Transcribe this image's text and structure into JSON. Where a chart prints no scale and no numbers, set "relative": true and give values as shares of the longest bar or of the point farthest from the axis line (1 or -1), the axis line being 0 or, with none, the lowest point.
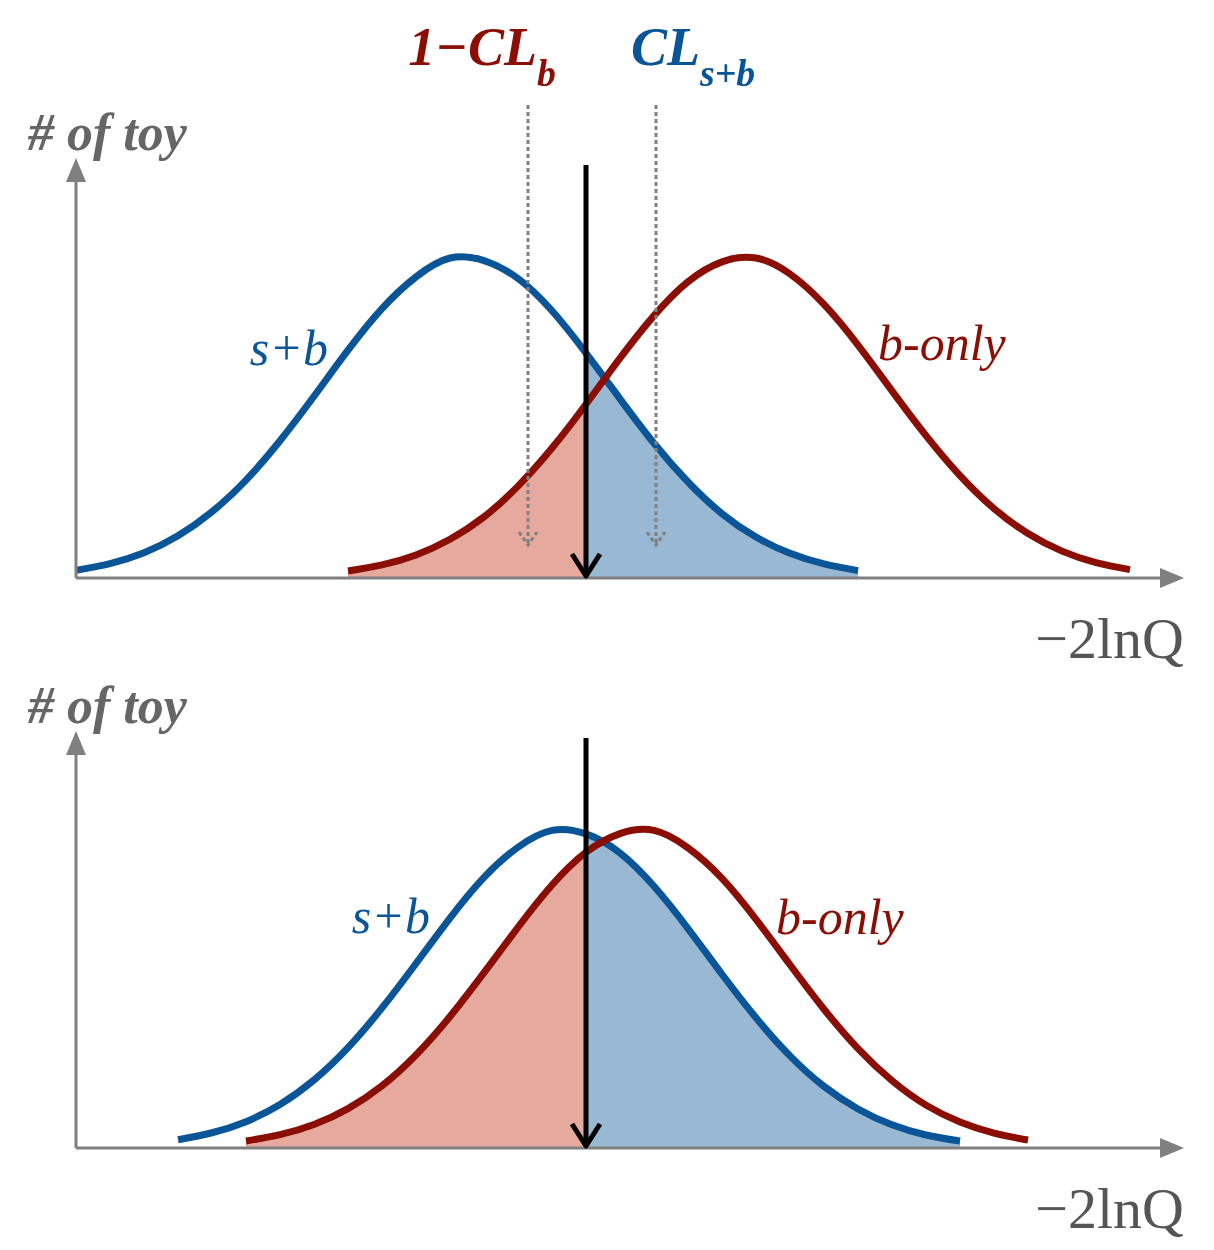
{
  "chart_data": [
    {
      "type": "line",
      "relative": true,
      "xlabel": "−2lnQ",
      "ylabel": "# of toy",
      "annotations": [
        "1−CL$_{b}$",
        "CL$_{s+b}$"
      ],
      "categories": [
        null,
        null,
        null,
        null,
        null,
        null,
        null,
        null,
        null,
        null,
        null,
        null,
        null,
        null,
        null,
        null,
        null,
        null,
        null,
        null,
        null,
        null,
        null,
        null,
        null,
        null,
        null,
        null,
        null,
        null,
        null,
        null,
        null
      ],
      "series": [
        {
          "type": "area",
          "color": "#e6a99d",
          "values": [
            null,
            null,
            null,
            null,
            null,
            null,
            null,
            null,
            0.022,
            0.041,
            0.072,
            0.121,
            0.191,
            0.287,
            0.406,
            0.543,
            null,
            null,
            null,
            null,
            null,
            null,
            null,
            null,
            null,
            null,
            null,
            null,
            null,
            null,
            null,
            null,
            null
          ]
        },
        {
          "type": "area",
          "color": "#98b8d3",
          "values": [
            null,
            null,
            null,
            null,
            null,
            null,
            null,
            null,
            null,
            null,
            null,
            null,
            null,
            null,
            null,
            0.703,
            0.56,
            0.421,
            0.3,
            0.201,
            0.128,
            0.077,
            0.044,
            0.023,
            null,
            null,
            null,
            null,
            null,
            null,
            null,
            null,
            null
          ]
        },
        {
          "type": "line",
          "name": "s+b",
          "color": "#0a5597",
          "values": [
            0.024,
            0.045,
            0.079,
            0.132,
            0.207,
            0.306,
            0.429,
            0.568,
            0.712,
            0.842,
            0.941,
            1,
            0.992,
            0.936,
            0.835,
            0.703,
            0.56,
            0.421,
            0.3,
            0.201,
            0.128,
            0.077,
            0.044,
            0.023,
            null,
            null,
            null,
            null,
            null,
            null,
            null,
            null,
            null
          ]
        },
        {
          "type": "line",
          "name": "b-only",
          "color": "#8b0e04",
          "values": [
            null,
            null,
            null,
            null,
            null,
            null,
            null,
            null,
            0.022,
            0.041,
            0.072,
            0.121,
            0.191,
            0.287,
            0.406,
            0.543,
            0.687,
            0.82,
            0.926,
            0.988,
            1,
            0.95,
            0.855,
            0.728,
            0.585,
            0.445,
            0.32,
            0.217,
            0.139,
            0.084,
            0.048,
            0.026,
            null
          ]
        }
      ]
    },
    {
      "type": "line",
      "relative": true,
      "xlabel": "−2lnQ",
      "ylabel": "# of toy",
      "categories": [
        null,
        null,
        null,
        null,
        null,
        null,
        null,
        null,
        null,
        null,
        null,
        null,
        null,
        null,
        null,
        null,
        null,
        null,
        null,
        null,
        null,
        null,
        null,
        null,
        null,
        null,
        null,
        null,
        null,
        null,
        null,
        null,
        null
      ],
      "series": [
        {
          "type": "area",
          "color": "#e6a99d",
          "values": [
            null,
            null,
            null,
            null,
            null,
            0.022,
            0.042,
            0.074,
            0.124,
            0.196,
            0.293,
            0.414,
            0.552,
            0.695,
            0.828,
            0.931,
            null,
            null,
            null,
            null,
            null,
            null,
            null,
            null,
            null,
            null,
            null,
            null,
            null,
            null,
            null,
            null,
            null
          ]
        },
        {
          "type": "area",
          "color": "#98b8d3",
          "values": [
            null,
            null,
            null,
            null,
            null,
            null,
            null,
            null,
            null,
            null,
            null,
            null,
            null,
            null,
            null,
            0.989,
            0.929,
            0.824,
            0.691,
            0.547,
            0.41,
            0.29,
            0.194,
            0.123,
            0.073,
            0.041,
            0.022,
            null,
            null,
            null,
            null,
            null,
            null
          ]
        },
        {
          "type": "line",
          "name": "s+b",
          "color": "#0a5597",
          "values": [
            null,
            null,
            null,
            0.026,
            0.048,
            0.083,
            0.137,
            0.214,
            0.316,
            0.441,
            0.581,
            0.724,
            0.852,
            0.947,
            1,
            0.989,
            0.929,
            0.824,
            0.691,
            0.547,
            0.41,
            0.29,
            0.194,
            0.123,
            0.073,
            0.041,
            0.022,
            null,
            null,
            null,
            null,
            null,
            null
          ]
        },
        {
          "type": "line",
          "name": "b-only",
          "color": "#8b0e04",
          "values": [
            null,
            null,
            null,
            null,
            null,
            0.022,
            0.042,
            0.074,
            0.124,
            0.196,
            0.293,
            0.414,
            0.552,
            0.695,
            0.828,
            0.931,
            0.99,
            1,
            0.945,
            0.849,
            0.72,
            0.577,
            0.437,
            0.313,
            0.212,
            0.135,
            0.082,
            0.047,
            0.025,
            null,
            null,
            null,
            null
          ]
        }
      ]
    }
  ]
}
